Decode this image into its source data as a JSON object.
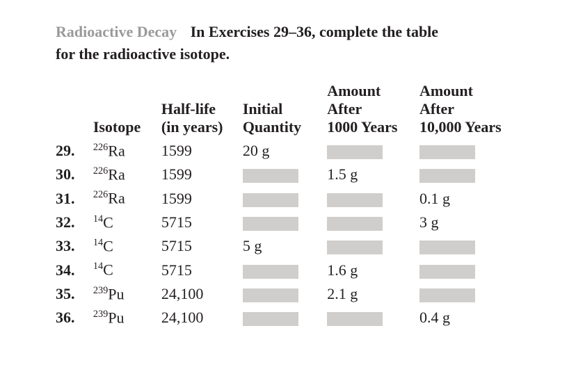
{
  "section_title": "Radioactive Decay",
  "intro_text_1": "In Exercises 29–36, complete the table",
  "intro_text_2": "for the radioactive isotope.",
  "headers": {
    "isotope": "Isotope",
    "halflife_l1": "Half-life",
    "halflife_l2": "(in years)",
    "initial_l1": "Initial",
    "initial_l2": "Quantity",
    "after1000_l1": "Amount",
    "after1000_l2": "After",
    "after1000_l3": "1000 Years",
    "after10000_l1": "Amount",
    "after10000_l2": "After",
    "after10000_l3": "10,000 Years"
  },
  "rows": [
    {
      "num": "29.",
      "sup": "226",
      "elem": "Ra",
      "hl": "1599",
      "iq": "20 g",
      "a1": "",
      "a2": ""
    },
    {
      "num": "30.",
      "sup": "226",
      "elem": "Ra",
      "hl": "1599",
      "iq": "",
      "a1": "1.5 g",
      "a2": ""
    },
    {
      "num": "31.",
      "sup": "226",
      "elem": "Ra",
      "hl": "1599",
      "iq": "",
      "a1": "",
      "a2": "0.1 g"
    },
    {
      "num": "32.",
      "sup": "14",
      "elem": "C",
      "hl": "5715",
      "iq": "",
      "a1": "",
      "a2": "3 g"
    },
    {
      "num": "33.",
      "sup": "14",
      "elem": "C",
      "hl": "5715",
      "iq": "5 g",
      "a1": "",
      "a2": ""
    },
    {
      "num": "34.",
      "sup": "14",
      "elem": "C",
      "hl": "5715",
      "iq": "",
      "a1": "1.6 g",
      "a2": ""
    },
    {
      "num": "35.",
      "sup": "239",
      "elem": "Pu",
      "hl": "24,100",
      "iq": "",
      "a1": "2.1 g",
      "a2": ""
    },
    {
      "num": "36.",
      "sup": "239",
      "elem": "Pu",
      "hl": "24,100",
      "iq": "",
      "a1": "",
      "a2": "0.4 g"
    }
  ],
  "style": {
    "blank_color": "#cfcecd",
    "title_color": "#9b9a9a",
    "text_color": "#231f20",
    "background": "#ffffff",
    "base_fontsize": 22,
    "blank_width": 80,
    "blank_height": 20
  }
}
